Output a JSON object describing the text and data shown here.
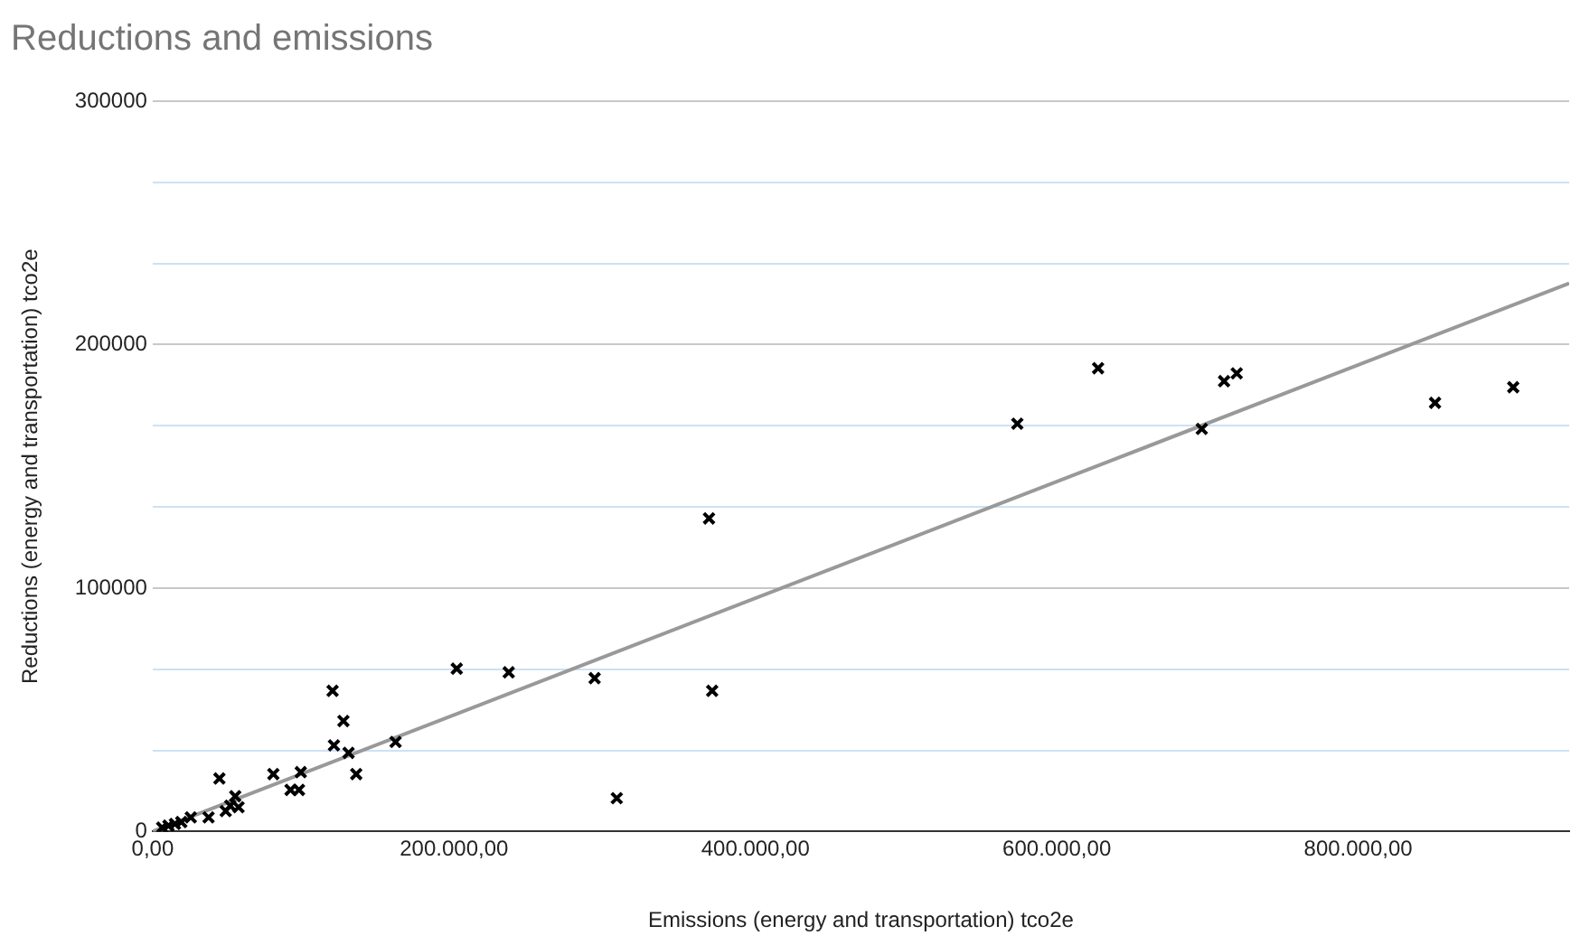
{
  "chart_data": {
    "type": "scatter",
    "title": "Reductions and emissions",
    "xlabel": "Emissions (energy and transportation) tco2e",
    "ylabel": "Reductions (energy and transportation) tco2e",
    "series": [
      {
        "type": "scatter",
        "color": "#000000",
        "marker": "cross",
        "x": [
          369200,
          371300,
          308000,
          293300,
          236300,
          201800,
          161200,
          119400,
          126600,
          120300,
          130000,
          135100,
          98300,
          97100,
          91500,
          80100,
          44300,
          54800,
          51500,
          57000,
          48500,
          37100,
          23200,
          19000,
          14800,
          10500,
          6300,
          25300,
          573800,
          627400,
          696200,
          711000,
          719400,
          851000,
          902900
        ],
        "values": [
          128600,
          57800,
          13700,
          63000,
          65400,
          66900,
          36800,
          57800,
          45400,
          35400,
          32300,
          23600,
          24400,
          17100,
          17100,
          23600,
          21800,
          14500,
          10600,
          10000,
          8400,
          5800,
          null,
          3900,
          3100,
          2400,
          1600,
          5800,
          167500,
          190300,
          165400,
          185000,
          188200,
          176100,
          182500
        ]
      },
      {
        "type": "line",
        "color": "#999999",
        "marker": "none",
        "x": [
          0,
          940000
        ],
        "values": [
          0,
          225200
        ]
      }
    ],
    "xlim": [
      0,
      940000
    ],
    "xticks": [
      {
        "value": 0,
        "label": "0,00"
      },
      {
        "value": 200000,
        "label": "200.000,00"
      },
      {
        "value": 400000,
        "label": "400.000,00"
      },
      {
        "value": 600000,
        "label": "600.000,00"
      },
      {
        "value": 800000,
        "label": "800.000,00"
      }
    ],
    "ylim": [
      0,
      300000
    ],
    "yticks": [
      0,
      {
        "value": 33333,
        "label": null
      },
      {
        "value": 66667,
        "label": null
      },
      100000,
      {
        "value": 133333,
        "label": null
      },
      {
        "value": 166667,
        "label": null
      },
      200000,
      {
        "value": 233333,
        "label": null
      },
      {
        "value": 266667,
        "label": null
      },
      300000
    ],
    "grid": "y",
    "legend": false
  }
}
